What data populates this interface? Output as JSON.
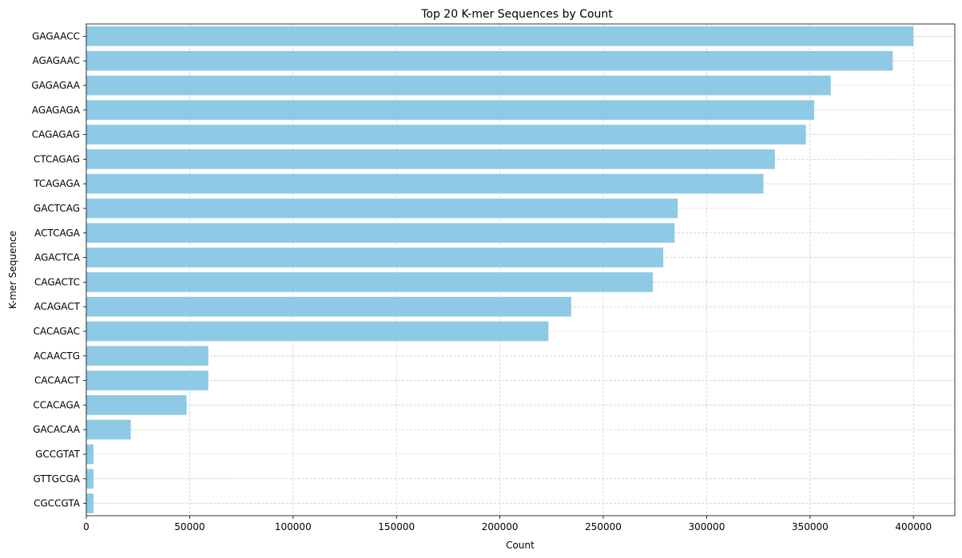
{
  "chart_data": {
    "type": "bar",
    "orientation": "horizontal",
    "title": "Top 20 K-mer Sequences by Count",
    "xlabel": "Count",
    "ylabel": "K-mer Sequence",
    "xlim": [
      0,
      420000
    ],
    "xticks": [
      0,
      50000,
      100000,
      150000,
      200000,
      250000,
      300000,
      350000,
      400000
    ],
    "grid": true,
    "bar_color": "#8ecae6",
    "categories": [
      "GAGAACC",
      "AGAGAAC",
      "GAGAGAA",
      "AGAGAGA",
      "CAGAGAG",
      "CTCAGAG",
      "TCAGAGA",
      "GACTCAG",
      "ACTCAGA",
      "AGACTCA",
      "CAGACTC",
      "ACAGACT",
      "CACAGAC",
      "ACAACTG",
      "CACAACT",
      "CCACAGA",
      "GACACAA",
      "GCCGTAT",
      "GTTGCGA",
      "CGCCGTA"
    ],
    "values": [
      400000,
      390000,
      360000,
      352000,
      348000,
      333000,
      327500,
      286000,
      284500,
      279000,
      274000,
      234500,
      223500,
      59000,
      59000,
      48500,
      21500,
      3500,
      3500,
      3500
    ]
  }
}
